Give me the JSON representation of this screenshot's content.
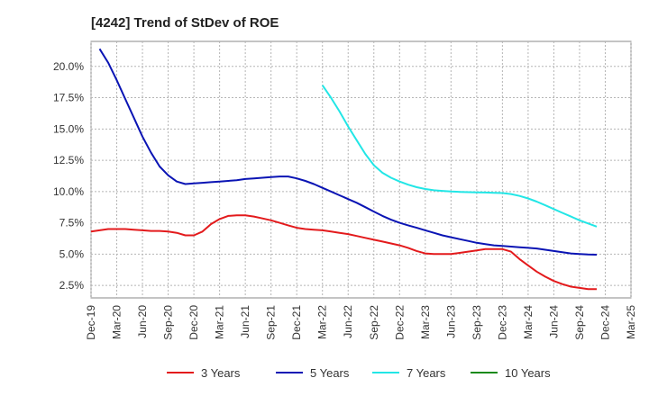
{
  "chart_data": {
    "type": "line",
    "title": "[4242]  Trend of StDev of ROE",
    "xlabel": "",
    "ylabel": "",
    "y_tick_labels": [
      "2.5%",
      "5.0%",
      "7.5%",
      "10.0%",
      "12.5%",
      "15.0%",
      "17.5%",
      "20.0%"
    ],
    "y_ticks": [
      2.5,
      5.0,
      7.5,
      10.0,
      12.5,
      15.0,
      17.5,
      20.0
    ],
    "ylim": [
      1.5,
      22.0
    ],
    "x_tick_labels": [
      "Dec-19",
      "Mar-20",
      "Jun-20",
      "Sep-20",
      "Dec-20",
      "Mar-21",
      "Jun-21",
      "Sep-21",
      "Dec-21",
      "Mar-22",
      "Jun-22",
      "Sep-22",
      "Dec-22",
      "Mar-23",
      "Jun-23",
      "Sep-23",
      "Dec-23",
      "Mar-24",
      "Jun-24",
      "Sep-24",
      "Dec-24",
      "Mar-25"
    ],
    "grid": true,
    "legend_position": "bottom",
    "series": [
      {
        "name": "3 Years",
        "color": "#e31a1c",
        "points": [
          [
            "Dec-19",
            6.8
          ],
          [
            "Jan-20",
            6.9
          ],
          [
            "Feb-20",
            7.0
          ],
          [
            "Mar-20",
            7.0
          ],
          [
            "Apr-20",
            7.0
          ],
          [
            "May-20",
            6.95
          ],
          [
            "Jun-20",
            6.9
          ],
          [
            "Jul-20",
            6.85
          ],
          [
            "Aug-20",
            6.85
          ],
          [
            "Sep-20",
            6.8
          ],
          [
            "Oct-20",
            6.7
          ],
          [
            "Nov-20",
            6.5
          ],
          [
            "Dec-20",
            6.5
          ],
          [
            "Jan-21",
            6.8
          ],
          [
            "Feb-21",
            7.4
          ],
          [
            "Mar-21",
            7.8
          ],
          [
            "Apr-21",
            8.05
          ],
          [
            "May-21",
            8.1
          ],
          [
            "Jun-21",
            8.1
          ],
          [
            "Jul-21",
            8.0
          ],
          [
            "Aug-21",
            7.85
          ],
          [
            "Sep-21",
            7.7
          ],
          [
            "Oct-21",
            7.5
          ],
          [
            "Nov-21",
            7.3
          ],
          [
            "Dec-21",
            7.1
          ],
          [
            "Jan-22",
            7.0
          ],
          [
            "Feb-22",
            6.95
          ],
          [
            "Mar-22",
            6.9
          ],
          [
            "Apr-22",
            6.8
          ],
          [
            "May-22",
            6.7
          ],
          [
            "Jun-22",
            6.6
          ],
          [
            "Jul-22",
            6.45
          ],
          [
            "Aug-22",
            6.3
          ],
          [
            "Sep-22",
            6.15
          ],
          [
            "Oct-22",
            6.0
          ],
          [
            "Nov-22",
            5.85
          ],
          [
            "Dec-22",
            5.7
          ],
          [
            "Jan-23",
            5.5
          ],
          [
            "Feb-23",
            5.25
          ],
          [
            "Mar-23",
            5.05
          ],
          [
            "Apr-23",
            5.0
          ],
          [
            "May-23",
            5.0
          ],
          [
            "Jun-23",
            5.0
          ],
          [
            "Jul-23",
            5.1
          ],
          [
            "Aug-23",
            5.2
          ],
          [
            "Sep-23",
            5.3
          ],
          [
            "Oct-23",
            5.4
          ],
          [
            "Nov-23",
            5.4
          ],
          [
            "Dec-23",
            5.4
          ],
          [
            "Jan-24",
            5.2
          ],
          [
            "Feb-24",
            4.6
          ],
          [
            "Mar-24",
            4.1
          ],
          [
            "Apr-24",
            3.6
          ],
          [
            "May-24",
            3.2
          ],
          [
            "Jun-24",
            2.85
          ],
          [
            "Jul-24",
            2.6
          ],
          [
            "Aug-24",
            2.4
          ],
          [
            "Sep-24",
            2.3
          ],
          [
            "Oct-24",
            2.2
          ],
          [
            "Nov-24",
            2.2
          ]
        ]
      },
      {
        "name": "5 Years",
        "color": "#0a14b4",
        "points": [
          [
            "Jan-20",
            21.4
          ],
          [
            "Feb-20",
            20.3
          ],
          [
            "Mar-20",
            18.9
          ],
          [
            "Apr-20",
            17.4
          ],
          [
            "May-20",
            15.9
          ],
          [
            "Jun-20",
            14.4
          ],
          [
            "Jul-20",
            13.1
          ],
          [
            "Aug-20",
            12.0
          ],
          [
            "Sep-20",
            11.3
          ],
          [
            "Oct-20",
            10.8
          ],
          [
            "Nov-20",
            10.6
          ],
          [
            "Dec-20",
            10.65
          ],
          [
            "Jan-21",
            10.7
          ],
          [
            "Feb-21",
            10.75
          ],
          [
            "Mar-21",
            10.8
          ],
          [
            "Apr-21",
            10.85
          ],
          [
            "May-21",
            10.9
          ],
          [
            "Jun-21",
            11.0
          ],
          [
            "Jul-21",
            11.05
          ],
          [
            "Aug-21",
            11.1
          ],
          [
            "Sep-21",
            11.15
          ],
          [
            "Oct-21",
            11.2
          ],
          [
            "Nov-21",
            11.2
          ],
          [
            "Dec-21",
            11.05
          ],
          [
            "Jan-22",
            10.85
          ],
          [
            "Feb-22",
            10.6
          ],
          [
            "Mar-22",
            10.3
          ],
          [
            "Apr-22",
            10.0
          ],
          [
            "May-22",
            9.7
          ],
          [
            "Jun-22",
            9.4
          ],
          [
            "Jul-22",
            9.1
          ],
          [
            "Aug-22",
            8.75
          ],
          [
            "Sep-22",
            8.4
          ],
          [
            "Oct-22",
            8.05
          ],
          [
            "Nov-22",
            7.75
          ],
          [
            "Dec-22",
            7.5
          ],
          [
            "Jan-23",
            7.3
          ],
          [
            "Feb-23",
            7.1
          ],
          [
            "Mar-23",
            6.9
          ],
          [
            "Apr-23",
            6.7
          ],
          [
            "May-23",
            6.5
          ],
          [
            "Jun-23",
            6.35
          ],
          [
            "Jul-23",
            6.2
          ],
          [
            "Aug-23",
            6.05
          ],
          [
            "Sep-23",
            5.9
          ],
          [
            "Oct-23",
            5.8
          ],
          [
            "Nov-23",
            5.7
          ],
          [
            "Dec-23",
            5.65
          ],
          [
            "Jan-24",
            5.6
          ],
          [
            "Feb-24",
            5.55
          ],
          [
            "Mar-24",
            5.5
          ],
          [
            "Apr-24",
            5.45
          ],
          [
            "May-24",
            5.35
          ],
          [
            "Jun-24",
            5.25
          ],
          [
            "Jul-24",
            5.15
          ],
          [
            "Aug-24",
            5.05
          ],
          [
            "Sep-24",
            5.0
          ],
          [
            "Oct-24",
            4.97
          ],
          [
            "Nov-24",
            4.95
          ]
        ]
      },
      {
        "name": "7 Years",
        "color": "#22e6e6",
        "points": [
          [
            "Mar-22",
            18.5
          ],
          [
            "Apr-22",
            17.5
          ],
          [
            "May-22",
            16.4
          ],
          [
            "Jun-22",
            15.2
          ],
          [
            "Jul-22",
            14.1
          ],
          [
            "Aug-22",
            13.0
          ],
          [
            "Sep-22",
            12.1
          ],
          [
            "Oct-22",
            11.5
          ],
          [
            "Nov-22",
            11.1
          ],
          [
            "Dec-22",
            10.8
          ],
          [
            "Jan-23",
            10.55
          ],
          [
            "Feb-23",
            10.35
          ],
          [
            "Mar-23",
            10.2
          ],
          [
            "Apr-23",
            10.1
          ],
          [
            "May-23",
            10.05
          ],
          [
            "Jun-23",
            10.0
          ],
          [
            "Jul-23",
            9.97
          ],
          [
            "Aug-23",
            9.95
          ],
          [
            "Sep-23",
            9.93
          ],
          [
            "Oct-23",
            9.92
          ],
          [
            "Nov-23",
            9.9
          ],
          [
            "Dec-23",
            9.88
          ],
          [
            "Jan-24",
            9.8
          ],
          [
            "Feb-24",
            9.65
          ],
          [
            "Mar-24",
            9.45
          ],
          [
            "Apr-24",
            9.2
          ],
          [
            "May-24",
            8.9
          ],
          [
            "Jun-24",
            8.6
          ],
          [
            "Jul-24",
            8.3
          ],
          [
            "Aug-24",
            8.0
          ],
          [
            "Sep-24",
            7.7
          ],
          [
            "Oct-24",
            7.45
          ],
          [
            "Nov-24",
            7.2
          ]
        ]
      },
      {
        "name": "10 Years",
        "color": "#1a8a1a",
        "points": []
      }
    ]
  }
}
